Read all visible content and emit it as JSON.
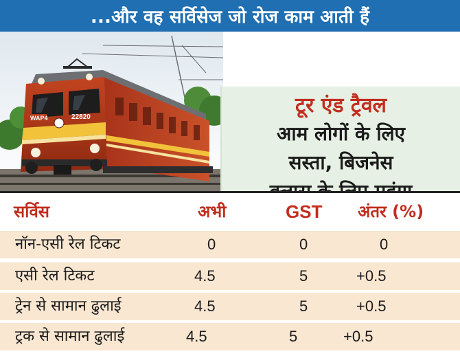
{
  "header": {
    "title": "...और वह सर्विसेज जो रोज काम आती हैं"
  },
  "hero": {
    "locomotive_plate": "WAP4",
    "locomotive_number": "22820",
    "kicker": "टूर एंड ट्रैवल",
    "lines": [
      "आम लोगों के लिए",
      "सस्ता, बिजनेस",
      "क्लास के लिए महंगा"
    ]
  },
  "table": {
    "headers": {
      "service": "सर्विस",
      "now": "अभी",
      "gst": "GST",
      "diff": "अंतर (%)"
    },
    "rows": [
      {
        "service": "नॉन-एसी रेल टिकट",
        "now": "0",
        "gst": "0",
        "diff": "0"
      },
      {
        "service": "एसी रेल टिकट",
        "now": "4.5",
        "gst": "5",
        "diff": "+0.5"
      },
      {
        "service": "ट्रेन से सामान ढुलाई",
        "now": "4.5",
        "gst": "5",
        "diff": "+0.5"
      },
      {
        "service": "ट्रक से सामान ढुलाई",
        "now": "4.5",
        "gst": "5",
        "diff": "+0.5"
      }
    ]
  },
  "colors": {
    "header_bg": "#1f6fb2",
    "accent_red": "#c12e1f",
    "row_bg": "#f9e7d2",
    "headline_bg": "#e6f0e4"
  }
}
